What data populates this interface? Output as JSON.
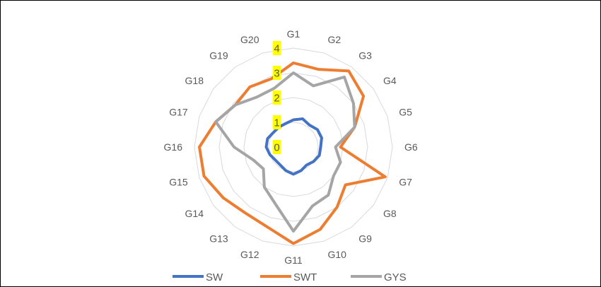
{
  "chart_data": {
    "type": "radar",
    "categories": [
      "G1",
      "G2",
      "G3",
      "G4",
      "G5",
      "G6",
      "G7",
      "G8",
      "G9",
      "G10",
      "G11",
      "G12",
      "G13",
      "G14",
      "G15",
      "G16",
      "G17",
      "G18",
      "G19",
      "G20"
    ],
    "rlim": [
      0,
      4
    ],
    "ticks": [
      "0",
      "1",
      "2",
      "3",
      "4"
    ],
    "tick_highlight_color": "#ffff00",
    "grid": true,
    "legend_position": "bottom",
    "series": [
      {
        "name": "SW",
        "color": "#4472c4",
        "values": [
          1.1,
          1.2,
          1.1,
          1.2,
          1.2,
          1.1,
          1.1,
          1.0,
          0.9,
          1.0,
          1.1,
          1.0,
          0.9,
          0.9,
          1.0,
          1.1,
          1.1,
          1.0,
          1.0,
          1.0
        ]
      },
      {
        "name": "SWT",
        "color": "#ed7d31",
        "values": [
          3.4,
          3.3,
          3.8,
          3.5,
          2.6,
          1.9,
          3.9,
          2.6,
          3.0,
          3.5,
          3.9,
          3.4,
          3.3,
          3.5,
          3.8,
          3.8,
          3.3,
          2.9,
          3.0,
          2.9
        ]
      },
      {
        "name": "GYS",
        "color": "#a5a5a5",
        "values": [
          3.0,
          2.6,
          3.5,
          3.0,
          2.6,
          1.7,
          2.0,
          2.0,
          2.4,
          2.5,
          3.4,
          2.4,
          2.0,
          1.5,
          1.7,
          2.4,
          3.3,
          2.9,
          2.5,
          2.5
        ]
      }
    ]
  }
}
